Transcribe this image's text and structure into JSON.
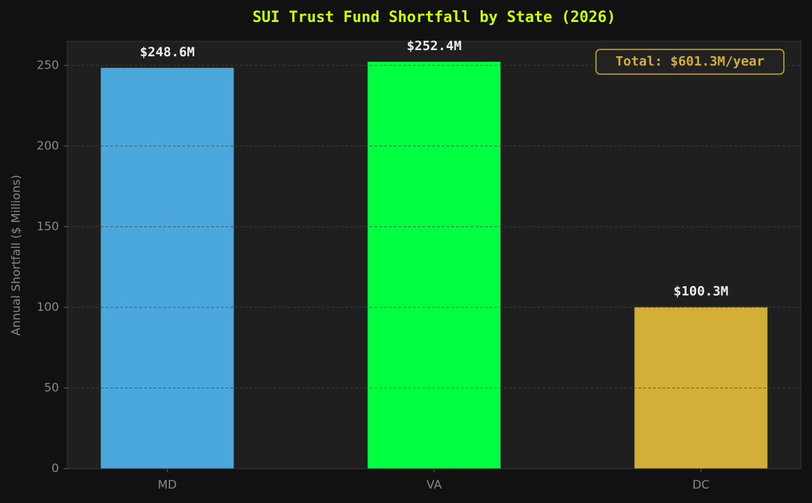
{
  "chart_data": {
    "type": "bar",
    "title": "SUI Trust Fund Shortfall by State (2026)",
    "ylabel": "Annual Shortfall ($ Millions)",
    "categories": [
      "MD",
      "VA",
      "DC"
    ],
    "values": [
      248.6,
      252.4,
      100.3
    ],
    "value_labels": [
      "$248.6M",
      "$252.4M",
      "$100.3M"
    ],
    "colors": [
      "#4aa8dc",
      "#00ff41",
      "#d4af37"
    ],
    "annotation": "Total: $601.3M/year",
    "ylim": [
      0,
      265
    ],
    "yticks": [
      0,
      50,
      100,
      150,
      200,
      250
    ],
    "grid": true
  }
}
